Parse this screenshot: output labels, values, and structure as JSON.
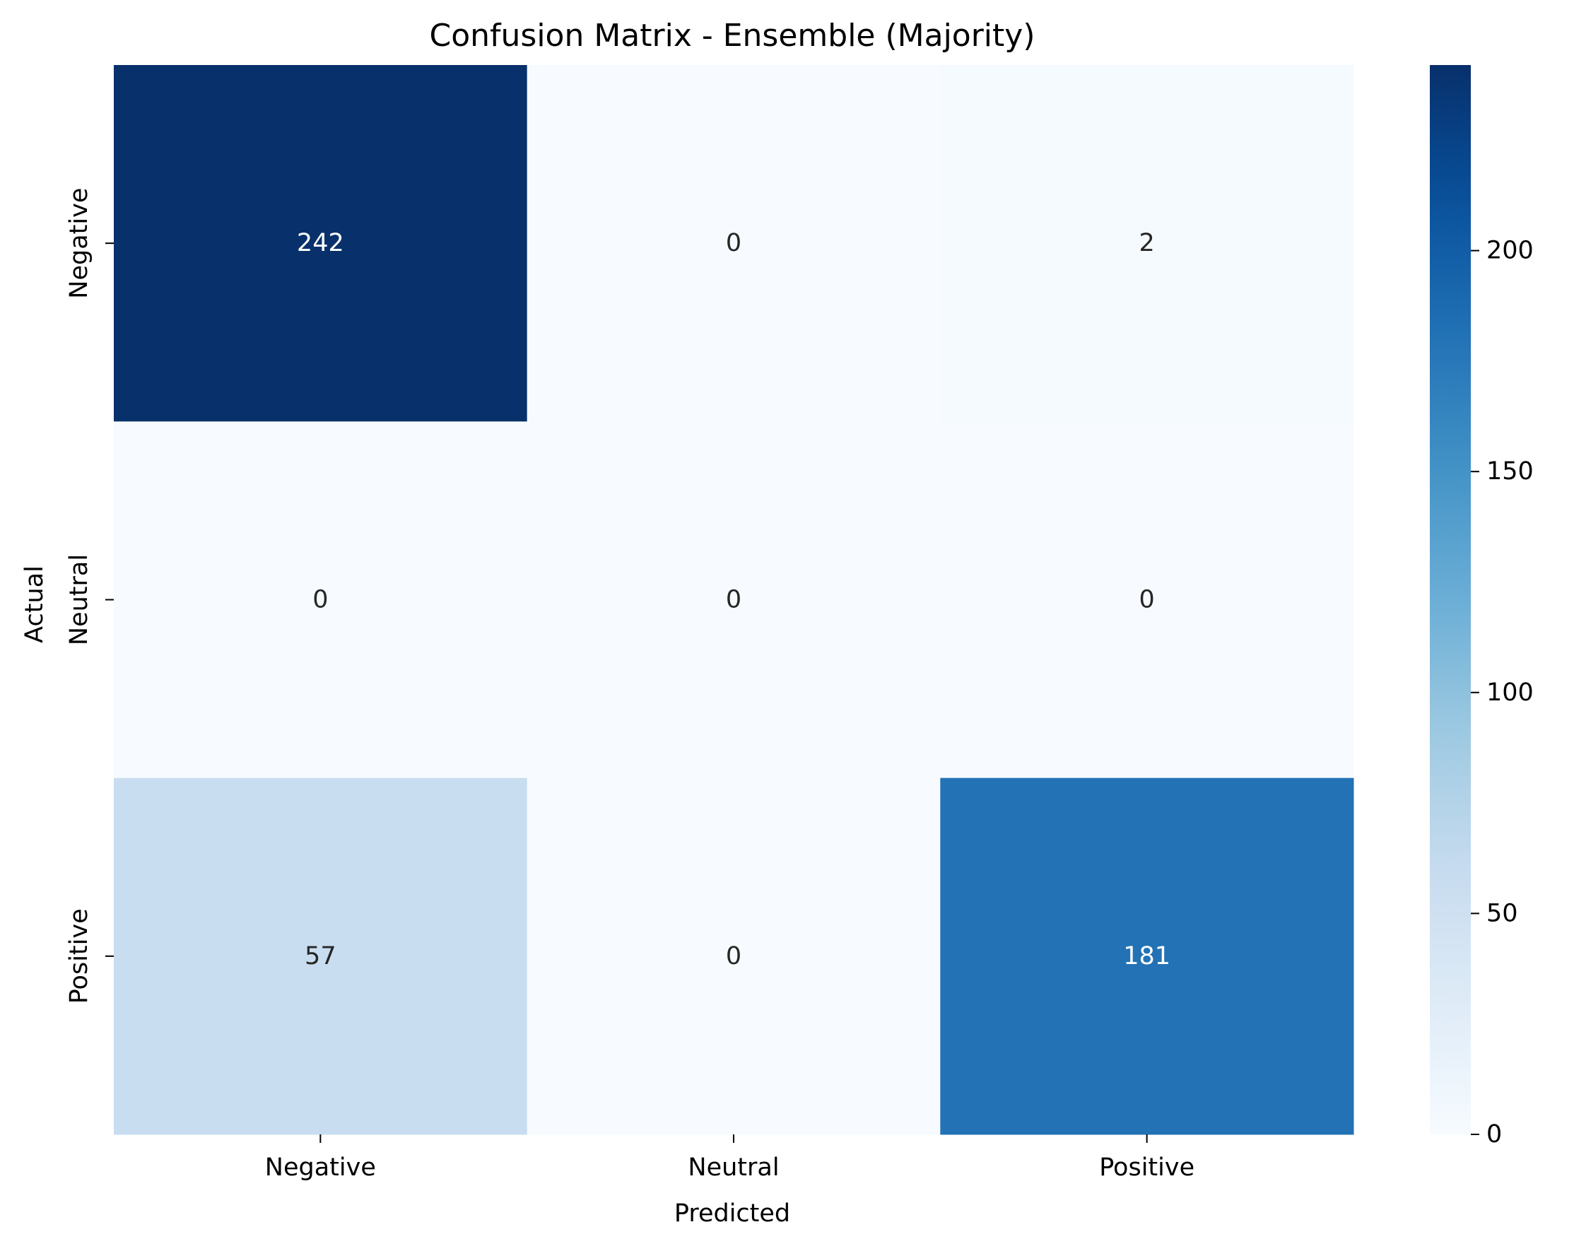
{
  "chart_data": {
    "type": "heatmap",
    "title": "Confusion Matrix - Ensemble (Majority)",
    "xlabel": "Predicted",
    "ylabel": "Actual",
    "x_categories": [
      "Negative",
      "Neutral",
      "Positive"
    ],
    "y_categories": [
      "Negative",
      "Neutral",
      "Positive"
    ],
    "values": [
      [
        242,
        0,
        2
      ],
      [
        0,
        0,
        0
      ],
      [
        57,
        0,
        181
      ]
    ],
    "colorbar": {
      "colormap": "Blues",
      "range": [
        0,
        242
      ],
      "ticks": [
        0,
        50,
        100,
        150,
        200
      ],
      "tick_labels": [
        "0",
        "50",
        "100",
        "150",
        "200"
      ]
    },
    "grid": false
  }
}
